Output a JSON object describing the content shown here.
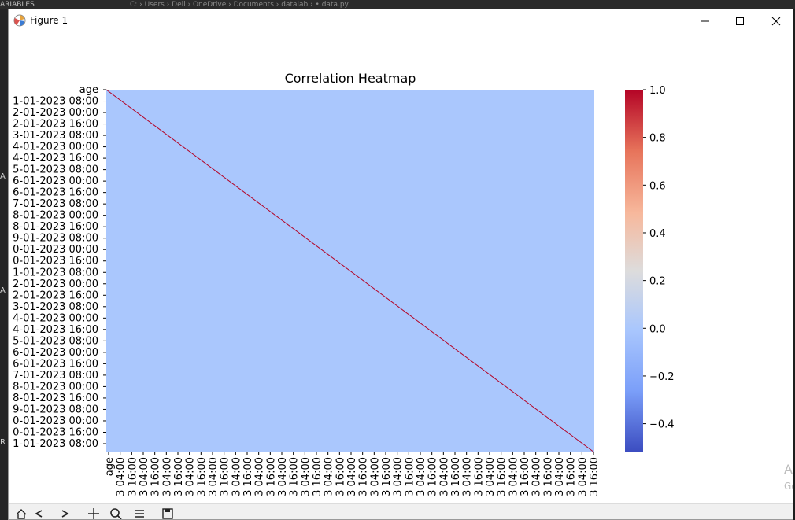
{
  "background": {
    "left_label": "ARIABLES",
    "breadcrumb": "C: › Users › Dell › OneDrive › Documents › datalab › • data.py",
    "left_fragments": [
      "A",
      "A",
      "R"
    ]
  },
  "window": {
    "title": "Figure 1",
    "side_fragment_1": "A",
    "side_fragment_2": "Go"
  },
  "colors": {
    "heatmap_fill": "#aac7fd",
    "diagonal": "#b40426",
    "cmap_high": "#b40426",
    "cmap_mid": "#dddcdc",
    "cmap_low": "#3b4cc0"
  },
  "chart_data": {
    "type": "heatmap",
    "title": "Correlation Heatmap",
    "colormap": "coolwarm",
    "row_labels": [
      "age",
      "1-01-2023 08:00",
      "2-01-2023 00:00",
      "2-01-2023 16:00",
      "3-01-2023 08:00",
      "4-01-2023 00:00",
      "4-01-2023 16:00",
      "5-01-2023 08:00",
      "6-01-2023 00:00",
      "6-01-2023 16:00",
      "7-01-2023 08:00",
      "8-01-2023 00:00",
      "8-01-2023 16:00",
      "9-01-2023 08:00",
      "0-01-2023 00:00",
      "0-01-2023 16:00",
      "1-01-2023 08:00",
      "2-01-2023 00:00",
      "2-01-2023 16:00",
      "3-01-2023 08:00",
      "4-01-2023 00:00",
      "4-01-2023 16:00",
      "5-01-2023 08:00",
      "6-01-2023 00:00",
      "6-01-2023 16:00",
      "7-01-2023 08:00",
      "8-01-2023 00:00",
      "8-01-2023 16:00",
      "9-01-2023 08:00",
      "0-01-2023 00:00",
      "0-01-2023 16:00",
      "1-01-2023 08:00"
    ],
    "col_labels": [
      "age",
      "3 04:00",
      "3 16:00",
      "3 04:00",
      "3 16:00",
      "3 04:00",
      "3 16:00",
      "3 04:00",
      "3 16:00",
      "3 04:00",
      "3 16:00",
      "3 04:00",
      "3 16:00",
      "3 04:00",
      "3 16:00",
      "3 04:00",
      "3 16:00",
      "3 04:00",
      "3 16:00",
      "3 04:00",
      "3 16:00",
      "3 04:00",
      "3 16:00",
      "3 04:00",
      "3 16:00",
      "3 04:00",
      "3 16:00",
      "3 04:00",
      "3 16:00",
      "3 04:00",
      "3 16:00",
      "3 04:00",
      "3 16:00",
      "3 04:00",
      "3 16:00",
      "3 04:00",
      "3 16:00",
      "3 04:00",
      "3 16:00",
      "3 04:00",
      "3 16:00",
      "3 04:00",
      "3 16:00"
    ],
    "off_diagonal_value": 0.0,
    "diagonal_value": 1.0,
    "colorbar": {
      "ticks": [
        1.0,
        0.8,
        0.6,
        0.4,
        0.2,
        0.0,
        -0.2,
        -0.4
      ],
      "tick_labels": [
        "1.0",
        "0.8",
        "0.6",
        "0.4",
        "0.2",
        "0.0",
        "−0.2",
        "−0.4"
      ],
      "vmin": -0.52,
      "vmax": 1.0
    }
  }
}
